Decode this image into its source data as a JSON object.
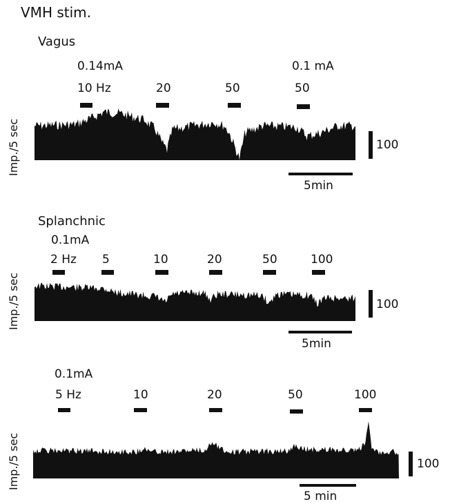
{
  "title": "VMH stim.",
  "colors": {
    "trace": "#111111"
  },
  "chart_data": [
    {
      "type": "area",
      "section_label": "Vagus",
      "ylabel": "Imp./5 sec",
      "current_labels": [
        "0.14mA",
        "0.1 mA"
      ],
      "stim_labels": [
        "10 Hz",
        "20",
        "50",
        "50"
      ],
      "stimulations": [
        {
          "current_mA": 0.14,
          "frequency_hz": 10
        },
        {
          "current_mA": 0.14,
          "frequency_hz": 20
        },
        {
          "current_mA": 0.14,
          "frequency_hz": 50
        },
        {
          "current_mA": 0.1,
          "frequency_hz": 50
        }
      ],
      "scale_bar_y_label": "100",
      "time_scale_label": "5min"
    },
    {
      "type": "area",
      "section_label": "Splanchnic",
      "ylabel": "Imp./5 sec",
      "current_labels": [
        "0.1mA"
      ],
      "stim_labels": [
        "2 Hz",
        "5",
        "10",
        "20",
        "50",
        "100"
      ],
      "stimulations": [
        {
          "current_mA": 0.1,
          "frequency_hz": 2
        },
        {
          "current_mA": 0.1,
          "frequency_hz": 5
        },
        {
          "current_mA": 0.1,
          "frequency_hz": 10
        },
        {
          "current_mA": 0.1,
          "frequency_hz": 20
        },
        {
          "current_mA": 0.1,
          "frequency_hz": 50
        },
        {
          "current_mA": 0.1,
          "frequency_hz": 100
        }
      ],
      "scale_bar_y_label": "100",
      "time_scale_label": "5min"
    },
    {
      "type": "area",
      "section_label": "",
      "ylabel": "Imp./5 sec",
      "current_labels": [
        "0.1mA"
      ],
      "stim_labels": [
        "5 Hz",
        "10",
        "20",
        "50",
        "100"
      ],
      "stimulations": [
        {
          "current_mA": 0.1,
          "frequency_hz": 5
        },
        {
          "current_mA": 0.1,
          "frequency_hz": 10
        },
        {
          "current_mA": 0.1,
          "frequency_hz": 20
        },
        {
          "current_mA": 0.1,
          "frequency_hz": 50
        },
        {
          "current_mA": 0.1,
          "frequency_hz": 100
        }
      ],
      "scale_bar_y_label": "100",
      "time_scale_label": "5 min"
    }
  ]
}
